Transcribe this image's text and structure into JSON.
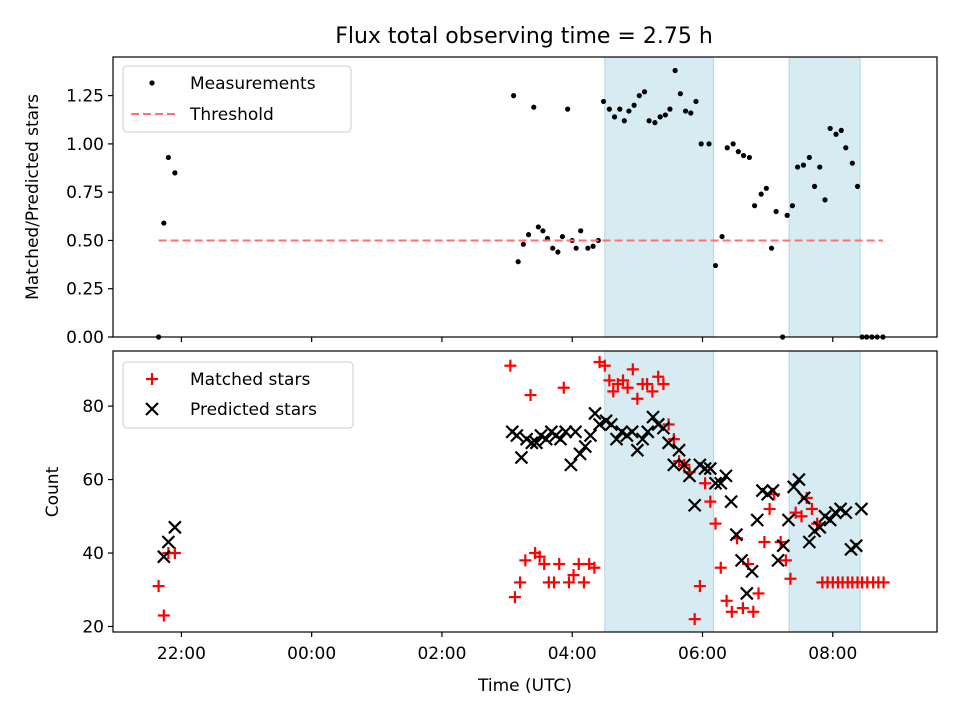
{
  "figure_title": "Flux total observing time = 2.75 h",
  "chart_data": [
    {
      "type": "scatter",
      "panel": "top",
      "ylabel": "Matched/Predicted stars",
      "xlabel": "",
      "xlim_hours": [
        -3.05,
        9.6
      ],
      "ylim": [
        0,
        1.45
      ],
      "yticks": [
        0.0,
        0.25,
        0.5,
        0.75,
        1.0,
        1.25
      ],
      "ytick_labels": [
        "0.00",
        "0.25",
        "0.50",
        "0.75",
        "1.00",
        "1.25"
      ],
      "legend_position": "upper-left",
      "shaded_intervals_hours": [
        [
          4.5,
          6.17
        ],
        [
          7.33,
          8.42
        ]
      ],
      "series": [
        {
          "name": "Measurements",
          "marker": "dot",
          "color": "#000000",
          "x_hours": [
            -2.35,
            -2.27,
            -2.2,
            -2.1,
            3.1,
            3.17,
            3.25,
            3.33,
            3.41,
            3.48,
            3.55,
            3.62,
            3.7,
            3.78,
            3.85,
            3.93,
            4.0,
            4.06,
            4.13,
            4.24,
            4.32,
            4.4,
            4.48,
            4.57,
            4.65,
            4.73,
            4.8,
            4.87,
            4.95,
            5.03,
            5.11,
            5.18,
            5.27,
            5.35,
            5.43,
            5.5,
            5.58,
            5.66,
            5.74,
            5.82,
            5.9,
            5.98,
            6.1,
            6.2,
            6.3,
            6.38,
            6.47,
            6.55,
            6.63,
            6.72,
            6.8,
            6.9,
            6.98,
            7.06,
            7.13,
            7.23,
            7.3,
            7.38,
            7.46,
            7.55,
            7.64,
            7.72,
            7.8,
            7.88,
            7.96,
            8.05,
            8.13,
            8.2,
            8.3,
            8.38,
            8.45,
            8.52,
            8.6,
            8.68,
            8.77
          ],
          "y": [
            0.0,
            0.59,
            0.93,
            0.85,
            1.25,
            0.39,
            0.48,
            0.53,
            1.19,
            0.57,
            0.55,
            0.51,
            0.46,
            0.44,
            0.52,
            1.18,
            0.5,
            0.46,
            0.55,
            0.46,
            0.47,
            0.5,
            1.22,
            1.18,
            1.14,
            1.18,
            1.12,
            1.17,
            1.2,
            1.25,
            1.27,
            1.12,
            1.11,
            1.14,
            1.15,
            1.18,
            1.38,
            1.26,
            1.17,
            1.16,
            1.22,
            1.0,
            1.0,
            0.37,
            0.52,
            0.98,
            1.0,
            0.96,
            0.94,
            0.93,
            0.68,
            0.74,
            0.77,
            0.46,
            0.65,
            0.0,
            0.63,
            0.68,
            0.88,
            0.89,
            0.93,
            0.78,
            0.88,
            0.71,
            1.08,
            1.05,
            1.07,
            0.98,
            0.9,
            0.78,
            0.0,
            0.0,
            0.0,
            0.0,
            0.0
          ]
        },
        {
          "name": "Threshold",
          "marker": "dashed-line",
          "color": "#ff7070",
          "x_hours": [
            -2.35,
            8.77
          ],
          "y": [
            0.5,
            0.5
          ]
        }
      ]
    },
    {
      "type": "scatter",
      "panel": "bottom",
      "ylabel": "Count",
      "xlabel": "Time (UTC)",
      "xlim_hours": [
        -3.05,
        9.6
      ],
      "ylim": [
        18.5,
        95
      ],
      "yticks": [
        20,
        40,
        60,
        80
      ],
      "ytick_labels": [
        "20",
        "40",
        "60",
        "80"
      ],
      "xticks_hours": [
        -2,
        0,
        2,
        4,
        6,
        8
      ],
      "xtick_labels": [
        "22:00",
        "00:00",
        "02:00",
        "04:00",
        "06:00",
        "08:00"
      ],
      "legend_position": "upper-left",
      "shaded_intervals_hours": [
        [
          4.5,
          6.17
        ],
        [
          7.33,
          8.42
        ]
      ],
      "series": [
        {
          "name": "Matched stars",
          "marker": "plus",
          "color": "#ff0000",
          "x_hours": [
            -2.35,
            -2.27,
            -2.2,
            -2.1,
            3.05,
            3.12,
            3.2,
            3.28,
            3.36,
            3.43,
            3.5,
            3.57,
            3.64,
            3.72,
            3.8,
            3.87,
            3.95,
            4.02,
            4.1,
            4.18,
            4.26,
            4.34,
            4.42,
            4.5,
            4.57,
            4.63,
            4.7,
            4.78,
            4.85,
            4.93,
            5.0,
            5.08,
            5.15,
            5.23,
            5.32,
            5.4,
            5.48,
            5.56,
            5.64,
            5.72,
            5.8,
            5.88,
            5.96,
            6.04,
            6.12,
            6.2,
            6.28,
            6.37,
            6.45,
            6.53,
            6.62,
            6.7,
            6.78,
            6.86,
            6.95,
            7.03,
            7.1,
            7.2,
            7.28,
            7.35,
            7.43,
            7.52,
            7.6,
            7.68,
            7.76,
            7.84,
            7.92,
            8.0,
            8.08,
            8.15,
            8.23,
            8.3,
            8.38,
            8.45,
            8.53,
            8.62,
            8.7,
            8.78
          ],
          "y": [
            31,
            23,
            40,
            40,
            91,
            28,
            32,
            38,
            83,
            40,
            39,
            37,
            32,
            32,
            37,
            85,
            32,
            34,
            37,
            32,
            37,
            36,
            92,
            91,
            87,
            84,
            86,
            87,
            85,
            90,
            82,
            86,
            86,
            84,
            88,
            86,
            75,
            71,
            65,
            64,
            62,
            22,
            31,
            59,
            54,
            48,
            36,
            27,
            24,
            44,
            25,
            37,
            24,
            29,
            43,
            52,
            56,
            43,
            38,
            33,
            51,
            50,
            55,
            52,
            48,
            32,
            32,
            32,
            32,
            32,
            32,
            32,
            32,
            32,
            32,
            32,
            32,
            32
          ]
        },
        {
          "name": "Predicted stars",
          "marker": "x",
          "color": "#000000",
          "x_hours": [
            -2.27,
            -2.2,
            -2.1,
            3.08,
            3.15,
            3.22,
            3.3,
            3.38,
            3.45,
            3.52,
            3.6,
            3.68,
            3.75,
            3.82,
            3.9,
            3.98,
            4.05,
            4.12,
            4.2,
            4.28,
            4.35,
            4.42,
            4.52,
            4.6,
            4.68,
            4.76,
            4.84,
            4.92,
            5.0,
            5.08,
            5.16,
            5.24,
            5.32,
            5.4,
            5.48,
            5.56,
            5.64,
            5.72,
            5.8,
            5.88,
            5.96,
            6.04,
            6.12,
            6.2,
            6.28,
            6.36,
            6.44,
            6.52,
            6.6,
            6.68,
            6.76,
            6.84,
            6.92,
            7.0,
            7.08,
            7.16,
            7.24,
            7.32,
            7.4,
            7.48,
            7.56,
            7.64,
            7.72,
            7.8,
            7.88,
            7.96,
            8.04,
            8.12,
            8.2,
            8.28,
            8.36,
            8.44
          ],
          "y": [
            39,
            43,
            47,
            73,
            72,
            66,
            71,
            70,
            70,
            72,
            71,
            73,
            72,
            71,
            73,
            64,
            73,
            67,
            69,
            72,
            78,
            75,
            76,
            75,
            71,
            73,
            72,
            73,
            68,
            71,
            73,
            77,
            75,
            74,
            70,
            64,
            68,
            64,
            61,
            53,
            64,
            63,
            63,
            59,
            59,
            61,
            54,
            45,
            38,
            29,
            35,
            49,
            57,
            56,
            57,
            38,
            42,
            49,
            58,
            60,
            55,
            43,
            46,
            47,
            50,
            49,
            51,
            52,
            51,
            41,
            42,
            52
          ]
        }
      ]
    }
  ]
}
